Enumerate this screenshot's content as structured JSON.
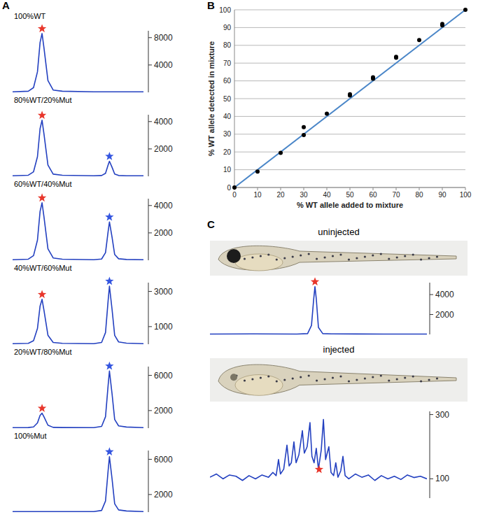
{
  "chart_data": [
    {
      "type": "line",
      "panel": "A",
      "title": "100%WT",
      "color": "#2340c0",
      "tick_labels": "y",
      "xlim": [
        0,
        100
      ],
      "ylim": [
        0,
        9000
      ],
      "yticks": [
        4000,
        8000
      ],
      "x": [
        0,
        12,
        16,
        19,
        21,
        22.5,
        24,
        27,
        31,
        38,
        62,
        68,
        71,
        73,
        74,
        76,
        78,
        81,
        87,
        100
      ],
      "values": [
        80,
        170,
        690,
        3000,
        7300,
        8600,
        6450,
        1720,
        340,
        170,
        80,
        80,
        80,
        80,
        80,
        80,
        80,
        80,
        80,
        80
      ],
      "annotations": [
        {
          "x": 22.5,
          "y": 8600,
          "marker": "star",
          "color": "#e8362b"
        }
      ]
    },
    {
      "type": "line",
      "title": "80%WT/20%Mut",
      "color": "#2340c0",
      "tick_labels": "y",
      "xlim": [
        0,
        100
      ],
      "ylim": [
        0,
        4500
      ],
      "yticks": [
        2000,
        4000
      ],
      "x": [
        0,
        12,
        16,
        19,
        21,
        22.5,
        24,
        27,
        31,
        38,
        62,
        68,
        71,
        73,
        74,
        76,
        78,
        81,
        87,
        100
      ],
      "values": [
        40,
        80,
        330,
        1430,
        3490,
        4100,
        3080,
        820,
        160,
        80,
        40,
        60,
        220,
        830,
        1100,
        660,
        170,
        60,
        40,
        40
      ],
      "annotations": [
        {
          "x": 22.5,
          "y": 4100,
          "marker": "star",
          "color": "#e8362b"
        },
        {
          "x": 74,
          "y": 1100,
          "marker": "star",
          "color": "#3556e0"
        }
      ]
    },
    {
      "type": "line",
      "title": "60%WT/40%Mut",
      "color": "#2340c0",
      "tick_labels": "y",
      "xlim": [
        0,
        100
      ],
      "ylim": [
        0,
        4500
      ],
      "yticks": [
        2000,
        4000
      ],
      "x": [
        0,
        12,
        16,
        19,
        21,
        22.5,
        24,
        27,
        31,
        38,
        62,
        68,
        71,
        73,
        74,
        76,
        78,
        81,
        87,
        100
      ],
      "values": [
        40,
        80,
        340,
        1470,
        3570,
        4200,
        3150,
        840,
        170,
        80,
        40,
        90,
        560,
        2100,
        2800,
        1680,
        420,
        110,
        60,
        40
      ],
      "annotations": [
        {
          "x": 22.5,
          "y": 4200,
          "marker": "star",
          "color": "#e8362b"
        },
        {
          "x": 74,
          "y": 2800,
          "marker": "star",
          "color": "#3556e0"
        }
      ]
    },
    {
      "type": "line",
      "title": "40%WT/60%Mut",
      "color": "#2340c0",
      "tick_labels": "y",
      "xlim": [
        0,
        100
      ],
      "ylim": [
        0,
        3500
      ],
      "yticks": [
        1000,
        3000
      ],
      "x": [
        0,
        12,
        16,
        19,
        21,
        22.5,
        24,
        27,
        31,
        38,
        62,
        68,
        71,
        73,
        74,
        76,
        78,
        81,
        87,
        100
      ],
      "values": [
        30,
        50,
        200,
        890,
        2170,
        2550,
        1910,
        510,
        100,
        50,
        30,
        100,
        660,
        2480,
        3300,
        1980,
        500,
        130,
        60,
        30
      ],
      "annotations": [
        {
          "x": 22.5,
          "y": 2550,
          "marker": "star",
          "color": "#e8362b"
        },
        {
          "x": 74,
          "y": 3300,
          "marker": "star",
          "color": "#3556e0"
        }
      ]
    },
    {
      "type": "line",
      "title": "20%WT/80%Mut",
      "color": "#2340c0",
      "tick_labels": "y",
      "xlim": [
        0,
        100
      ],
      "ylim": [
        0,
        7000
      ],
      "yticks": [
        2000,
        6000
      ],
      "x": [
        0,
        12,
        16,
        19,
        21,
        22.5,
        24,
        27,
        31,
        38,
        62,
        68,
        71,
        73,
        74,
        76,
        78,
        81,
        87,
        100
      ],
      "values": [
        60,
        70,
        140,
        600,
        1450,
        1700,
        1280,
        340,
        90,
        70,
        60,
        200,
        1300,
        4880,
        6500,
        3900,
        980,
        260,
        130,
        60
      ],
      "annotations": [
        {
          "x": 22.5,
          "y": 1700,
          "marker": "star",
          "color": "#e8362b"
        },
        {
          "x": 74,
          "y": 6500,
          "marker": "star",
          "color": "#3556e0"
        }
      ]
    },
    {
      "type": "line",
      "title": "100%Mut",
      "color": "#2340c0",
      "tick_labels": "y",
      "xlim": [
        0,
        100
      ],
      "ylim": [
        0,
        7000
      ],
      "yticks": [
        2000,
        6000
      ],
      "x": [
        0,
        12,
        16,
        19,
        21,
        22.5,
        24,
        27,
        31,
        38,
        62,
        68,
        71,
        73,
        74,
        76,
        78,
        81,
        87,
        100
      ],
      "values": [
        60,
        60,
        60,
        60,
        60,
        60,
        60,
        60,
        60,
        60,
        60,
        190,
        1260,
        4730,
        6300,
        3780,
        950,
        250,
        130,
        60
      ],
      "annotations": [
        {
          "x": 74,
          "y": 6300,
          "marker": "star",
          "color": "#3556e0"
        }
      ]
    },
    {
      "type": "scatter",
      "panel": "B",
      "xlabel": "% WT allele added to mixture",
      "ylabel": "% WT allele detected in mixture",
      "xlim": [
        0,
        100
      ],
      "ylim": [
        0,
        100
      ],
      "xticks": [
        0,
        10,
        20,
        30,
        40,
        50,
        60,
        70,
        80,
        90,
        100
      ],
      "yticks": [
        0,
        10,
        20,
        30,
        40,
        50,
        60,
        70,
        80,
        90,
        100
      ],
      "grid": true,
      "series": [
        {
          "type": "line",
          "line_style": "solid",
          "color": "#4a86c8",
          "x": [
            0,
            100
          ],
          "values": [
            0,
            100
          ]
        },
        {
          "type": "scatter",
          "marker": "circle",
          "color": "#000000",
          "x": [
            0,
            10,
            20,
            30,
            30,
            40,
            50,
            50,
            60,
            60,
            70,
            70,
            80,
            90,
            90,
            100
          ],
          "values": [
            0,
            9,
            19.5,
            34,
            29.5,
            41.5,
            51.8,
            52.5,
            62,
            61.2,
            73.5,
            73,
            83,
            92,
            91.2,
            100
          ]
        }
      ]
    },
    {
      "type": "line",
      "panel": "C",
      "title": "uninjected",
      "color": "#2340c0",
      "tick_labels": "y",
      "xlim": [
        0,
        100
      ],
      "ylim": [
        0,
        5200
      ],
      "yticks": [
        2000,
        4000
      ],
      "x": [
        0,
        20,
        40,
        45,
        46.8,
        47.8,
        48.4,
        49,
        50,
        52,
        56,
        80,
        100
      ],
      "values": [
        40,
        50,
        40,
        80,
        900,
        3500,
        4800,
        3600,
        700,
        80,
        50,
        40,
        40
      ],
      "annotations": [
        {
          "x": 48.4,
          "y": 4800,
          "marker": "star",
          "color": "#e8362b"
        }
      ]
    },
    {
      "type": "line",
      "title": "injected",
      "color": "#2340c0",
      "tick_labels": "y",
      "xlim": [
        0,
        100
      ],
      "ylim": [
        40,
        310
      ],
      "yticks": [
        100,
        300
      ],
      "x": [
        0,
        3,
        6,
        9,
        12,
        15,
        18,
        21,
        24,
        27,
        29,
        30.5,
        31.6,
        32.5,
        34,
        35.5,
        36.5,
        37.5,
        38.7,
        39.7,
        41,
        42.6,
        43.5,
        44.8,
        46.1,
        47,
        48,
        49,
        50,
        51.3,
        52.3,
        53.3,
        54.8,
        55.8,
        57,
        58,
        59,
        60.3,
        61.3,
        62.3,
        64,
        67,
        70,
        73,
        76,
        79,
        82,
        85,
        88,
        91,
        94,
        97,
        100
      ],
      "values": [
        105,
        115,
        100,
        112,
        108,
        95,
        110,
        100,
        112,
        105,
        120,
        110,
        160,
        115,
        130,
        205,
        140,
        150,
        215,
        150,
        175,
        250,
        180,
        200,
        275,
        170,
        150,
        195,
        130,
        190,
        285,
        160,
        200,
        120,
        110,
        150,
        105,
        125,
        170,
        110,
        100,
        115,
        105,
        112,
        95,
        110,
        100,
        108,
        98,
        112,
        104,
        108,
        100
      ],
      "annotations": [
        {
          "x": 50.3,
          "y": 114,
          "marker": "star",
          "color": "#e8362b"
        }
      ]
    }
  ]
}
